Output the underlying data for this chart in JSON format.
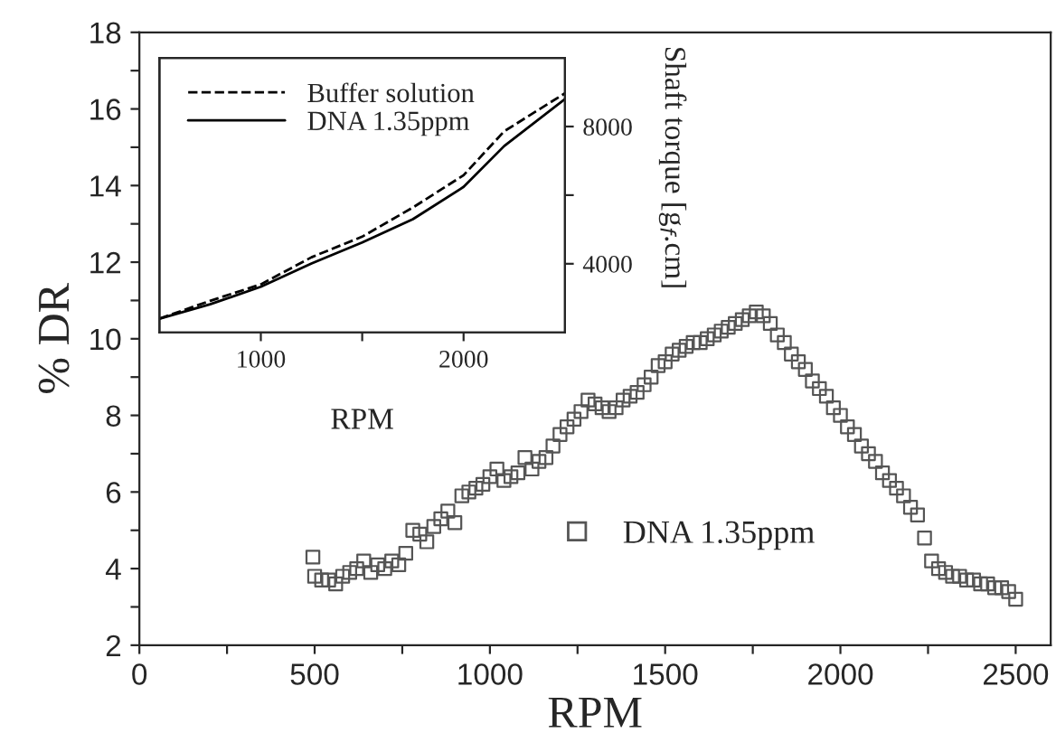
{
  "chart_data": [
    {
      "type": "scatter",
      "xlabel": "RPM",
      "ylabel": "% DR",
      "xlim": [
        0,
        2600
      ],
      "ylim": [
        2,
        18
      ],
      "xticks": [
        0,
        {
          "value": 250,
          "label": null
        },
        500,
        {
          "value": 750,
          "label": null
        },
        1000,
        {
          "value": 1250,
          "label": null
        },
        1500,
        {
          "value": 1750,
          "label": null
        },
        2000,
        {
          "value": 2250,
          "label": null
        },
        2500
      ],
      "yticks": [
        2,
        {
          "value": 3,
          "label": null
        },
        4,
        {
          "value": 5,
          "label": null
        },
        6,
        {
          "value": 7,
          "label": null
        },
        8,
        {
          "value": 9,
          "label": null
        },
        10,
        {
          "value": 11,
          "label": null
        },
        12,
        {
          "value": 13,
          "label": null
        },
        14,
        {
          "value": 15,
          "label": null
        },
        16,
        {
          "value": 17,
          "label": null
        },
        18
      ],
      "legend": "bottom",
      "marker": "square",
      "grid": false,
      "series": [
        {
          "name": "DNA 1.35ppm",
          "color": "#555555",
          "x": [
            495,
            500,
            520,
            540,
            560,
            580,
            600,
            620,
            640,
            660,
            680,
            700,
            720,
            740,
            760,
            780,
            800,
            820,
            840,
            860,
            880,
            900,
            920,
            940,
            960,
            980,
            1000,
            1020,
            1040,
            1060,
            1080,
            1100,
            1120,
            1140,
            1160,
            1180,
            1200,
            1220,
            1240,
            1260,
            1280,
            1300,
            1320,
            1340,
            1360,
            1380,
            1400,
            1420,
            1440,
            1460,
            1480,
            1500,
            1520,
            1540,
            1560,
            1580,
            1600,
            1620,
            1640,
            1660,
            1680,
            1700,
            1720,
            1740,
            1760,
            1780,
            1800,
            1820,
            1840,
            1860,
            1880,
            1900,
            1920,
            1940,
            1960,
            1980,
            2000,
            2020,
            2040,
            2060,
            2080,
            2100,
            2120,
            2140,
            2160,
            2180,
            2200,
            2220,
            2240,
            2260,
            2280,
            2300,
            2320,
            2340,
            2360,
            2380,
            2400,
            2420,
            2440,
            2460,
            2480,
            2500
          ],
          "values": [
            4.3,
            3.8,
            3.7,
            3.7,
            3.6,
            3.8,
            3.9,
            4.0,
            4.2,
            3.9,
            4.1,
            4.0,
            4.2,
            4.1,
            4.4,
            5.0,
            4.9,
            4.7,
            5.1,
            5.3,
            5.5,
            5.2,
            5.9,
            6.0,
            6.1,
            6.2,
            6.4,
            6.6,
            6.3,
            6.4,
            6.5,
            6.9,
            6.6,
            6.8,
            6.9,
            7.2,
            7.5,
            7.7,
            7.9,
            8.1,
            8.4,
            8.3,
            8.2,
            8.1,
            8.2,
            8.4,
            8.5,
            8.6,
            8.8,
            9.0,
            9.3,
            9.4,
            9.6,
            9.7,
            9.8,
            9.9,
            9.9,
            10.0,
            10.1,
            10.2,
            10.3,
            10.4,
            10.5,
            10.6,
            10.7,
            10.6,
            10.4,
            10.1,
            9.9,
            9.6,
            9.4,
            9.2,
            8.9,
            8.7,
            8.5,
            8.2,
            8.0,
            7.7,
            7.5,
            7.2,
            7.0,
            6.8,
            6.5,
            6.3,
            6.1,
            5.9,
            5.6,
            5.4,
            4.8,
            4.2,
            4.0,
            3.9,
            3.8,
            3.8,
            3.7,
            3.7,
            3.6,
            3.6,
            3.5,
            3.5,
            3.4,
            3.2
          ]
        }
      ]
    },
    {
      "type": "line",
      "xlabel": "RPM",
      "y2label": "Shaft torque [g$_{f}$.cm]",
      "xlim": [
        500,
        2500
      ],
      "y2lim": [
        2000,
        10000
      ],
      "xticks": [
        1000,
        {
          "value": 1500,
          "label": null
        },
        2000
      ],
      "y2ticks": [
        4000,
        {
          "value": 6000,
          "label": null
        },
        8000
      ],
      "legend": "top left",
      "grid": false,
      "series": [
        {
          "name": "Buffer solution",
          "color": "#000000",
          "line_style": "dashed",
          "axis": "y2",
          "x": [
            500,
            750,
            1000,
            1250,
            1500,
            1750,
            2000,
            2200,
            2500
          ],
          "values": [
            2400,
            2920,
            3400,
            4190,
            4790,
            5640,
            6580,
            7860,
            8970
          ]
        },
        {
          "name": "DNA 1.35ppm",
          "color": "#000000",
          "line_style": "solid",
          "axis": "y2",
          "x": [
            500,
            750,
            1000,
            1250,
            1500,
            1750,
            2000,
            2200,
            2500
          ],
          "values": [
            2400,
            2820,
            3330,
            4010,
            4620,
            5300,
            6240,
            7430,
            8800
          ]
        }
      ]
    }
  ]
}
